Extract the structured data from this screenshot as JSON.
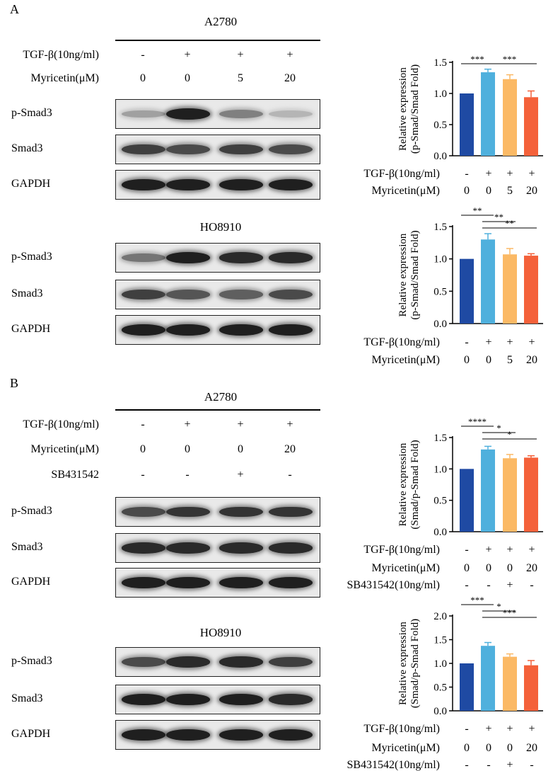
{
  "panels": [
    {
      "letter": "A",
      "sections": [
        {
          "cell_line": "A2780",
          "conditions": [
            {
              "label": "TGF-β(10ng/ml)",
              "values": [
                "-",
                "+",
                "+",
                "+"
              ]
            },
            {
              "label": "Myricetin(μM)",
              "values": [
                "0",
                "0",
                "5",
                "20"
              ]
            }
          ],
          "blots": [
            {
              "label": "p-Smad3",
              "intensity": [
                0.35,
                0.95,
                0.5,
                0.25
              ]
            },
            {
              "label": "Smad3",
              "intensity": [
                0.8,
                0.75,
                0.8,
                0.75
              ]
            },
            {
              "label": "GAPDH",
              "intensity": [
                0.95,
                0.95,
                0.95,
                0.95
              ]
            }
          ]
        },
        {
          "cell_line": "HO8910",
          "conditions": [],
          "blots": [
            {
              "label": "p-Smad3",
              "intensity": [
                0.55,
                0.95,
                0.9,
                0.9
              ]
            },
            {
              "label": "Smad3",
              "intensity": [
                0.8,
                0.7,
                0.65,
                0.75
              ]
            },
            {
              "label": "GAPDH",
              "intensity": [
                0.95,
                0.95,
                0.95,
                0.95
              ]
            }
          ]
        }
      ]
    },
    {
      "letter": "B",
      "sections": [
        {
          "cell_line": "A2780",
          "conditions": [
            {
              "label": "TGF-β(10ng/ml)",
              "values": [
                "-",
                "+",
                "+",
                "+"
              ]
            },
            {
              "label": "Myricetin(μM)",
              "values": [
                "0",
                "0",
                "0",
                "20"
              ]
            },
            {
              "label": "SB431542",
              "values": [
                "-",
                "-",
                "+",
                "-"
              ]
            }
          ],
          "blots": [
            {
              "label": "p-Smad3",
              "intensity": [
                0.75,
                0.85,
                0.85,
                0.85
              ]
            },
            {
              "label": "Smad3",
              "intensity": [
                0.9,
                0.9,
                0.9,
                0.9
              ]
            },
            {
              "label": "GAPDH",
              "intensity": [
                0.95,
                0.95,
                0.95,
                0.95
              ]
            }
          ]
        },
        {
          "cell_line": "HO8910",
          "conditions": [],
          "blots": [
            {
              "label": "p-Smad3",
              "intensity": [
                0.75,
                0.9,
                0.9,
                0.8
              ]
            },
            {
              "label": "Smad3",
              "intensity": [
                0.95,
                0.95,
                0.95,
                0.9
              ]
            },
            {
              "label": "GAPDH",
              "intensity": [
                0.95,
                0.95,
                0.95,
                0.95
              ]
            }
          ]
        }
      ]
    }
  ],
  "chart_data": [
    {
      "type": "bar",
      "ylabel": [
        "Relative expression",
        "(p-Smad/Smad Fold)"
      ],
      "ylim": [
        0,
        1.5
      ],
      "yticks": [
        "0.0",
        "0.5",
        "1.0",
        "1.5"
      ],
      "values": [
        1.0,
        1.34,
        1.23,
        0.94
      ],
      "errors": [
        0.0,
        0.05,
        0.07,
        0.1
      ],
      "colors": [
        "#1f4aa3",
        "#4fb0dd",
        "#fbb965",
        "#f4613a"
      ],
      "conditions": [
        {
          "label": "TGF-β(10ng/ml)",
          "values": [
            "-",
            "+",
            "+",
            "+"
          ]
        },
        {
          "label": "Myricetin(μM)",
          "values": [
            "0",
            "0",
            "5",
            "20"
          ]
        }
      ],
      "significance": [
        {
          "from": 0,
          "to": 1,
          "label": "***"
        },
        {
          "from": 1,
          "to": 3,
          "label": "***"
        }
      ]
    },
    {
      "type": "bar",
      "ylabel": [
        "Relative expression",
        "(p-Smad/Smad Fold)"
      ],
      "ylim": [
        0,
        1.5
      ],
      "yticks": [
        "0.0",
        "0.5",
        "1.0",
        "1.5"
      ],
      "values": [
        1.0,
        1.3,
        1.07,
        1.05
      ],
      "errors": [
        0.0,
        0.09,
        0.09,
        0.03
      ],
      "colors": [
        "#1f4aa3",
        "#4fb0dd",
        "#fbb965",
        "#f4613a"
      ],
      "conditions": [
        {
          "label": "TGF-β(10ng/ml)",
          "values": [
            "-",
            "+",
            "+",
            "+"
          ]
        },
        {
          "label": "Myricetin(μM)",
          "values": [
            "0",
            "0",
            "5",
            "20"
          ]
        }
      ],
      "significance": [
        {
          "from": 0,
          "to": 1,
          "label": "**"
        },
        {
          "from": 1,
          "to": 2,
          "label": "**"
        },
        {
          "from": 1,
          "to": 3,
          "label": "**"
        }
      ]
    },
    {
      "type": "bar",
      "ylabel": [
        "Relative expression",
        "(Smad/p-Smad Fold)"
      ],
      "ylim": [
        0,
        1.5
      ],
      "yticks": [
        "0.0",
        "0.5",
        "1.0",
        "1.5"
      ],
      "values": [
        1.0,
        1.31,
        1.17,
        1.18
      ],
      "errors": [
        0.0,
        0.05,
        0.06,
        0.03
      ],
      "colors": [
        "#1f4aa3",
        "#4fb0dd",
        "#fbb965",
        "#f4613a"
      ],
      "conditions": [
        {
          "label": "TGF-β(10ng/ml)",
          "values": [
            "-",
            "+",
            "+",
            "+"
          ]
        },
        {
          "label": "Myricetin(μM)",
          "values": [
            "0",
            "0",
            "0",
            "20"
          ]
        },
        {
          "label": "SB431542(10ng/ml)",
          "values": [
            "-",
            "-",
            "+",
            "-"
          ]
        }
      ],
      "significance": [
        {
          "from": 0,
          "to": 1,
          "label": "****"
        },
        {
          "from": 1,
          "to": 2,
          "label": "*"
        },
        {
          "from": 1,
          "to": 3,
          "label": "*"
        }
      ]
    },
    {
      "type": "bar",
      "ylabel": [
        "Relative expression",
        "(Smad/p-Smad Fold)"
      ],
      "ylim": [
        0,
        2.0
      ],
      "yticks": [
        "0.0",
        "0.5",
        "1.0",
        "1.5",
        "2.0"
      ],
      "values": [
        1.0,
        1.37,
        1.14,
        0.96
      ],
      "errors": [
        0.0,
        0.07,
        0.06,
        0.1
      ],
      "colors": [
        "#1f4aa3",
        "#4fb0dd",
        "#fbb965",
        "#f4613a"
      ],
      "conditions": [
        {
          "label": "TGF-β(10ng/ml)",
          "values": [
            "-",
            "+",
            "+",
            "+"
          ]
        },
        {
          "label": "Myricetin(μM)",
          "values": [
            "0",
            "0",
            "0",
            "20"
          ]
        },
        {
          "label": "SB431542(10ng/ml)",
          "values": [
            "-",
            "-",
            "+",
            "-"
          ]
        }
      ],
      "significance": [
        {
          "from": 0,
          "to": 1,
          "label": "***"
        },
        {
          "from": 1,
          "to": 2,
          "label": "*"
        },
        {
          "from": 1,
          "to": 3,
          "label": "***"
        }
      ]
    }
  ]
}
